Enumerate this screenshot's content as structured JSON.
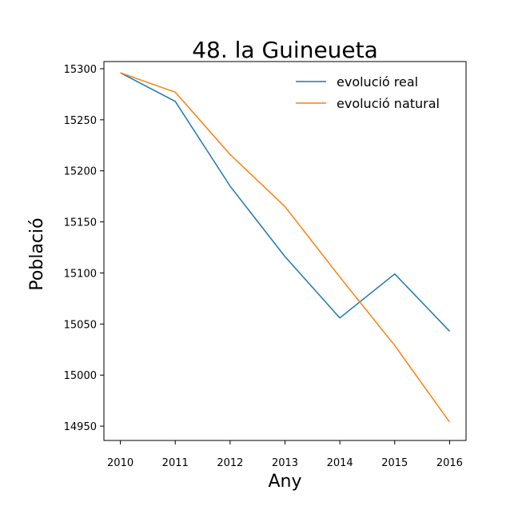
{
  "chart_data": {
    "type": "line",
    "title": "48. la Guineueta",
    "xlabel": "Any",
    "ylabel": "Població",
    "x": [
      2010,
      2011,
      2012,
      2013,
      2014,
      2015,
      2016
    ],
    "x_tick_labels": [
      "2010",
      "2011",
      "2012",
      "2013",
      "2014",
      "2015",
      "2016"
    ],
    "y_ticks": [
      14950,
      15000,
      15050,
      15100,
      15150,
      15200,
      15250,
      15300
    ],
    "y_tick_labels": [
      "14950",
      "15000",
      "15050",
      "15100",
      "15150",
      "15200",
      "15250",
      "15300"
    ],
    "xlim": [
      2009.7,
      2016.3
    ],
    "ylim": [
      14936,
      15307
    ],
    "grid": false,
    "legend_position": "top-right",
    "series": [
      {
        "name": "evolució real",
        "color": "#1f77b4",
        "values": [
          15296,
          15268,
          15185,
          15116,
          15056,
          15099,
          15043
        ]
      },
      {
        "name": "evolució natural",
        "color": "#ff7f0e",
        "values": [
          15296,
          15277,
          15216,
          15165,
          15096,
          15029,
          14954
        ]
      }
    ]
  }
}
